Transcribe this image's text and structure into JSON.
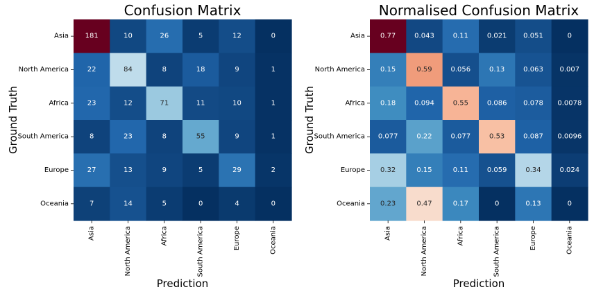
{
  "chart_data": [
    {
      "type": "heatmap",
      "title": "Confusion Matrix",
      "xlabel": "Prediction",
      "ylabel": "Ground Truth",
      "x_categories": [
        "Asia",
        "North America",
        "Africa",
        "South America",
        "Europe",
        "Oceania"
      ],
      "y_categories": [
        "Asia",
        "North America",
        "Africa",
        "South America",
        "Europe",
        "Oceania"
      ],
      "values": [
        [
          181,
          10,
          26,
          5,
          12,
          0
        ],
        [
          22,
          84,
          8,
          18,
          9,
          1
        ],
        [
          23,
          12,
          71,
          11,
          10,
          1
        ],
        [
          8,
          23,
          8,
          55,
          9,
          1
        ],
        [
          27,
          13,
          9,
          5,
          29,
          2
        ],
        [
          7,
          14,
          5,
          0,
          4,
          0
        ]
      ],
      "labels": [
        [
          "181",
          "10",
          "26",
          "5",
          "12",
          "0"
        ],
        [
          "22",
          "84",
          "8",
          "18",
          "9",
          "1"
        ],
        [
          "23",
          "12",
          "71",
          "11",
          "10",
          "1"
        ],
        [
          "8",
          "23",
          "8",
          "55",
          "9",
          "1"
        ],
        [
          "27",
          "13",
          "9",
          "5",
          "29",
          "2"
        ],
        [
          "7",
          "14",
          "5",
          "0",
          "4",
          "0"
        ]
      ],
      "colormap": "RdBu_r",
      "vmin": 0,
      "vmax": 181,
      "colorbar": false
    },
    {
      "type": "heatmap",
      "title": "Normalised Confusion Matrix",
      "xlabel": "Prediction",
      "ylabel": "Ground Truth",
      "x_categories": [
        "Asia",
        "North America",
        "Africa",
        "South America",
        "Europe",
        "Oceania"
      ],
      "y_categories": [
        "Asia",
        "North America",
        "Africa",
        "South America",
        "Europe",
        "Oceania"
      ],
      "values": [
        [
          0.77,
          0.043,
          0.11,
          0.021,
          0.051,
          0
        ],
        [
          0.15,
          0.59,
          0.056,
          0.13,
          0.063,
          0.007
        ],
        [
          0.18,
          0.094,
          0.55,
          0.086,
          0.078,
          0.0078
        ],
        [
          0.077,
          0.22,
          0.077,
          0.53,
          0.087,
          0.0096
        ],
        [
          0.32,
          0.15,
          0.11,
          0.059,
          0.34,
          0.024
        ],
        [
          0.23,
          0.47,
          0.17,
          0,
          0.13,
          0
        ]
      ],
      "labels": [
        [
          "0.77",
          "0.043",
          "0.11",
          "0.021",
          "0.051",
          "0"
        ],
        [
          "0.15",
          "0.59",
          "0.056",
          "0.13",
          "0.063",
          "0.007"
        ],
        [
          "0.18",
          "0.094",
          "0.55",
          "0.086",
          "0.078",
          "0.0078"
        ],
        [
          "0.077",
          "0.22",
          "0.077",
          "0.53",
          "0.087",
          "0.0096"
        ],
        [
          "0.32",
          "0.15",
          "0.11",
          "0.059",
          "0.34",
          "0.024"
        ],
        [
          "0.23",
          "0.47",
          "0.17",
          "0",
          "0.13",
          "0"
        ]
      ],
      "colormap": "RdBu_r",
      "vmin": 0,
      "vmax": 0.77,
      "colorbar": false
    }
  ]
}
